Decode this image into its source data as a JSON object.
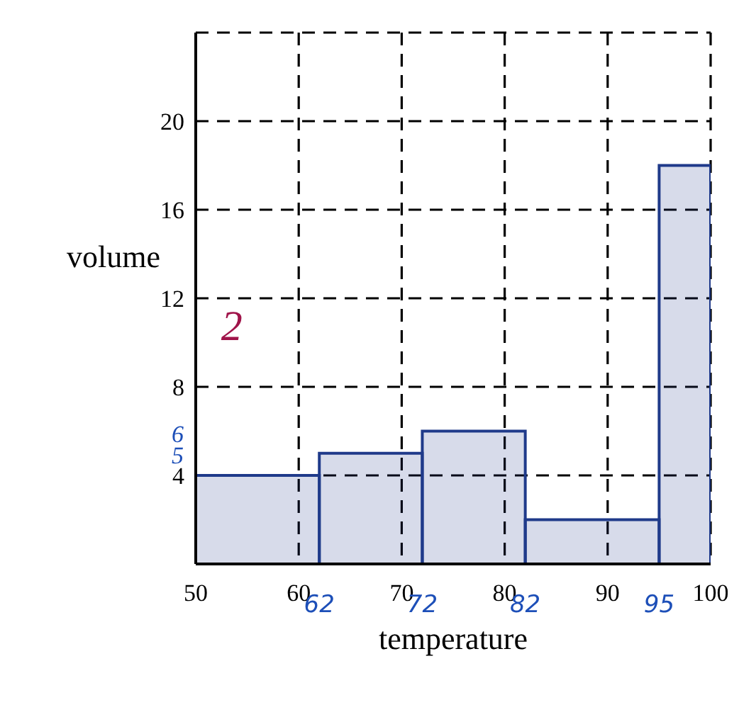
{
  "chart_data": {
    "type": "histogram",
    "xlabel": "temperature",
    "ylabel": "volume",
    "bins": [
      50,
      62,
      72,
      82,
      95,
      100
    ],
    "values": [
      4,
      5,
      6,
      2,
      18
    ],
    "color": "#1f3a8a",
    "xlim": [
      50,
      100
    ],
    "xticks": [
      50,
      60,
      70,
      80,
      90,
      100
    ],
    "ylim": [
      0,
      24
    ],
    "yticks": [
      4,
      8,
      12,
      16,
      20
    ],
    "grid": true,
    "annotations": [
      {
        "text": "62",
        "x": 62,
        "y": 0
      },
      {
        "text": "72",
        "x": 72,
        "y": 0
      },
      {
        "text": "82",
        "x": 82,
        "y": 0
      },
      {
        "text": "95",
        "x": 95,
        "y": 0
      },
      "5",
      "6",
      "2"
    ]
  }
}
